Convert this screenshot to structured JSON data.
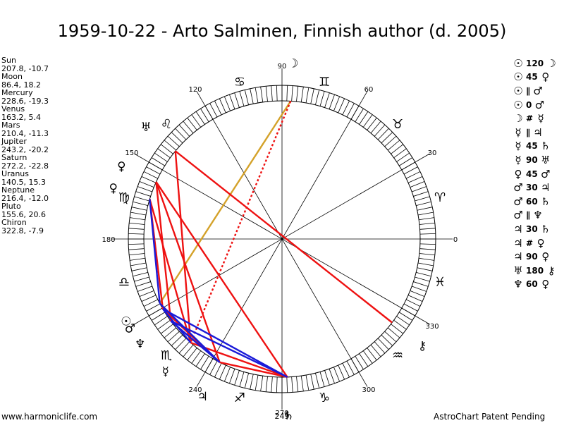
{
  "title": "1959-10-22 - Arto Salminen, Finnish author (d. 2005)",
  "planets": [
    {
      "name": "Sun",
      "coords": "207.8, -10.7",
      "symbol": "☉",
      "lon": 207.8
    },
    {
      "name": "Moon",
      "coords": "86.4, 18.2",
      "symbol": "☽",
      "lon": 86.4
    },
    {
      "name": "Mercury",
      "coords": "228.6, -19.3",
      "symbol": "☿",
      "lon": 228.6
    },
    {
      "name": "Venus",
      "coords": "163.2, 5.4",
      "symbol": "♀",
      "lon": 163.2
    },
    {
      "name": "Mars",
      "coords": "210.4, -11.3",
      "symbol": "♂",
      "lon": 210.4
    },
    {
      "name": "Jupiter",
      "coords": "243.2, -20.2",
      "symbol": "♃",
      "lon": 243.2
    },
    {
      "name": "Saturn",
      "coords": "272.2, -22.8",
      "symbol": "♄",
      "lon": 272.2
    },
    {
      "name": "Uranus",
      "coords": "140.5, 15.3",
      "symbol": "♅",
      "lon": 140.5
    },
    {
      "name": "Neptune",
      "coords": "216.4, -12.0",
      "symbol": "♆",
      "lon": 216.4
    },
    {
      "name": "Pluto",
      "coords": "155.6, 20.6",
      "symbol": "♀",
      "lon": 155.6
    },
    {
      "name": "Chiron",
      "coords": "322.8, -7.9",
      "symbol": "⚷",
      "lon": 322.8
    }
  ],
  "degree_labels": [
    {
      "text": "0",
      "deg": 0
    },
    {
      "text": "30",
      "deg": 30
    },
    {
      "text": "60",
      "deg": 60
    },
    {
      "text": "90",
      "deg": 90
    },
    {
      "text": "120",
      "deg": 120
    },
    {
      "text": "150",
      "deg": 150
    },
    {
      "text": "180",
      "deg": 180
    },
    {
      "text": "240",
      "deg": 240
    },
    {
      "text": "270",
      "deg": 270
    },
    {
      "text": "300",
      "deg": 300
    },
    {
      "text": "330",
      "deg": 330
    }
  ],
  "extra_label": "249",
  "zodiac": [
    {
      "sym": "♈",
      "deg": 15
    },
    {
      "sym": "♉",
      "deg": 45
    },
    {
      "sym": "♊",
      "deg": 75
    },
    {
      "sym": "♋",
      "deg": 105
    },
    {
      "sym": "♌",
      "deg": 135
    },
    {
      "sym": "♍",
      "deg": 165
    },
    {
      "sym": "♎",
      "deg": 195
    },
    {
      "sym": "♏",
      "deg": 225
    },
    {
      "sym": "♐",
      "deg": 255
    },
    {
      "sym": "♑",
      "deg": 285
    },
    {
      "sym": "♒",
      "deg": 315
    },
    {
      "sym": "♓",
      "deg": 345
    }
  ],
  "aspects": [
    {
      "a": "☉",
      "orb": "120",
      "b": "☽"
    },
    {
      "a": "☉",
      "orb": "45",
      "b": "♀"
    },
    {
      "a": "☉",
      "orb": "∥",
      "b": "♂"
    },
    {
      "a": "☉",
      "orb": "0",
      "b": "♂"
    },
    {
      "a": "☽",
      "orb": "#",
      "b": "☿"
    },
    {
      "a": "☿",
      "orb": "∥",
      "b": "♃"
    },
    {
      "a": "☿",
      "orb": "45",
      "b": "♄"
    },
    {
      "a": "☿",
      "orb": "90",
      "b": "♅"
    },
    {
      "a": "♀",
      "orb": "45",
      "b": "♂"
    },
    {
      "a": "♂",
      "orb": "30",
      "b": "♃"
    },
    {
      "a": "♂",
      "orb": "60",
      "b": "♄"
    },
    {
      "a": "♂",
      "orb": "∥",
      "b": "♆"
    },
    {
      "a": "♃",
      "orb": "30",
      "b": "♄"
    },
    {
      "a": "♃",
      "orb": "#",
      "b": "♀"
    },
    {
      "a": "♃",
      "orb": "90",
      "b": "♀"
    },
    {
      "a": "♅",
      "orb": "180",
      "b": "⚷"
    },
    {
      "a": "♆",
      "orb": "60",
      "b": "♀"
    }
  ],
  "aspect_lines": [
    {
      "from": "Moon",
      "to": "Sun",
      "color": "#d4a22a",
      "style": "solid"
    },
    {
      "from": "Moon",
      "to": "Mercury",
      "color": "#ee1111",
      "style": "dotted"
    },
    {
      "from": "Uranus",
      "to": "Chiron",
      "color": "#ee1111",
      "style": "solid"
    },
    {
      "from": "Uranus",
      "to": "Mercury",
      "color": "#ee1111",
      "style": "solid"
    },
    {
      "from": "Venus",
      "to": "Mercury",
      "color": "#ee1111",
      "style": "solid"
    },
    {
      "from": "Venus",
      "to": "Mars",
      "color": "#ee1111",
      "style": "solid"
    },
    {
      "from": "Pluto",
      "to": "Neptune",
      "color": "#ee1111",
      "style": "solid"
    },
    {
      "from": "Pluto",
      "to": "Jupiter",
      "color": "#ee1111",
      "style": "solid"
    },
    {
      "from": "Pluto",
      "to": "Saturn",
      "color": "#ee1111",
      "style": "solid"
    },
    {
      "from": "Mercury",
      "to": "Saturn",
      "color": "#ee1111",
      "style": "solid"
    },
    {
      "from": "Mars",
      "to": "Jupiter",
      "color": "#ee1111",
      "style": "solid"
    },
    {
      "from": "Jupiter",
      "to": "Saturn",
      "color": "#ee1111",
      "style": "solid"
    },
    {
      "from": "Venus",
      "to": "Sun",
      "color": "#1a1ad8",
      "style": "solid"
    },
    {
      "from": "Mars",
      "to": "Saturn",
      "color": "#1a1ad8",
      "style": "solid"
    },
    {
      "from": "Neptune",
      "to": "Jupiter",
      "color": "#1a1ad8",
      "style": "solid"
    },
    {
      "from": "Neptune",
      "to": "Saturn",
      "color": "#1a1ad8",
      "style": "solid"
    },
    {
      "from": "Jupiter",
      "to": "Sun",
      "color": "#1a1ad8",
      "style": "solid"
    },
    {
      "from": "Mars",
      "to": "Mercury",
      "color": "#1a1ad8",
      "style": "solid"
    }
  ],
  "footer": {
    "left": "www.harmoniclife.com",
    "right": "AstroChart Patent Pending"
  }
}
